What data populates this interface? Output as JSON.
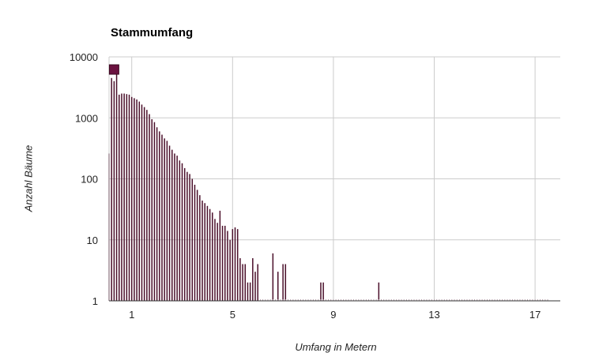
{
  "chart_data": {
    "type": "bar",
    "title": "Stammumfang",
    "xlabel": "Umfang in Metern",
    "ylabel": "Anzahl Bäume",
    "y_scale": "log",
    "ylim": [
      1,
      10000
    ],
    "xlim": [
      0.1,
      18
    ],
    "y_ticks": [
      "1",
      "10",
      "100",
      "1000",
      "10000"
    ],
    "y_tick_values": [
      1,
      10,
      100,
      1000,
      10000
    ],
    "x_ticks": [
      "1",
      "5",
      "9",
      "13",
      "17"
    ],
    "x_tick_values": [
      1,
      5,
      9,
      13,
      17
    ],
    "grid": true,
    "bar_color": "#4a0f2a",
    "marker_color": "#6b1240",
    "marker": {
      "x": 0.3,
      "y": 6200
    },
    "bin_width": 0.1,
    "x": [
      0.1,
      0.2,
      0.3,
      0.4,
      0.5,
      0.6,
      0.7,
      0.8,
      0.9,
      1.0,
      1.1,
      1.2,
      1.3,
      1.4,
      1.5,
      1.6,
      1.7,
      1.8,
      1.9,
      2.0,
      2.1,
      2.2,
      2.3,
      2.4,
      2.5,
      2.6,
      2.7,
      2.8,
      2.9,
      3.0,
      3.1,
      3.2,
      3.3,
      3.4,
      3.5,
      3.6,
      3.7,
      3.8,
      3.9,
      4.0,
      4.1,
      4.2,
      4.3,
      4.4,
      4.5,
      4.6,
      4.7,
      4.8,
      4.9,
      5.0,
      5.1,
      5.2,
      5.3,
      5.4,
      5.5,
      5.6,
      5.7,
      5.8,
      5.9,
      6.0,
      6.6,
      6.8,
      7.0,
      7.1,
      8.5,
      8.6,
      10.8
    ],
    "values": [
      260,
      4500,
      4000,
      5200,
      2400,
      2500,
      2500,
      2450,
      2400,
      2200,
      2100,
      2000,
      1850,
      1650,
      1500,
      1350,
      1150,
      950,
      850,
      700,
      600,
      530,
      460,
      420,
      350,
      300,
      260,
      240,
      200,
      180,
      150,
      130,
      120,
      100,
      80,
      66,
      54,
      44,
      40,
      36,
      32,
      28,
      22,
      19,
      30,
      17,
      17,
      14,
      10,
      15,
      16,
      15,
      5,
      4,
      4,
      2,
      2,
      5,
      3,
      4,
      6,
      3,
      4,
      4,
      2,
      2,
      2
    ]
  }
}
